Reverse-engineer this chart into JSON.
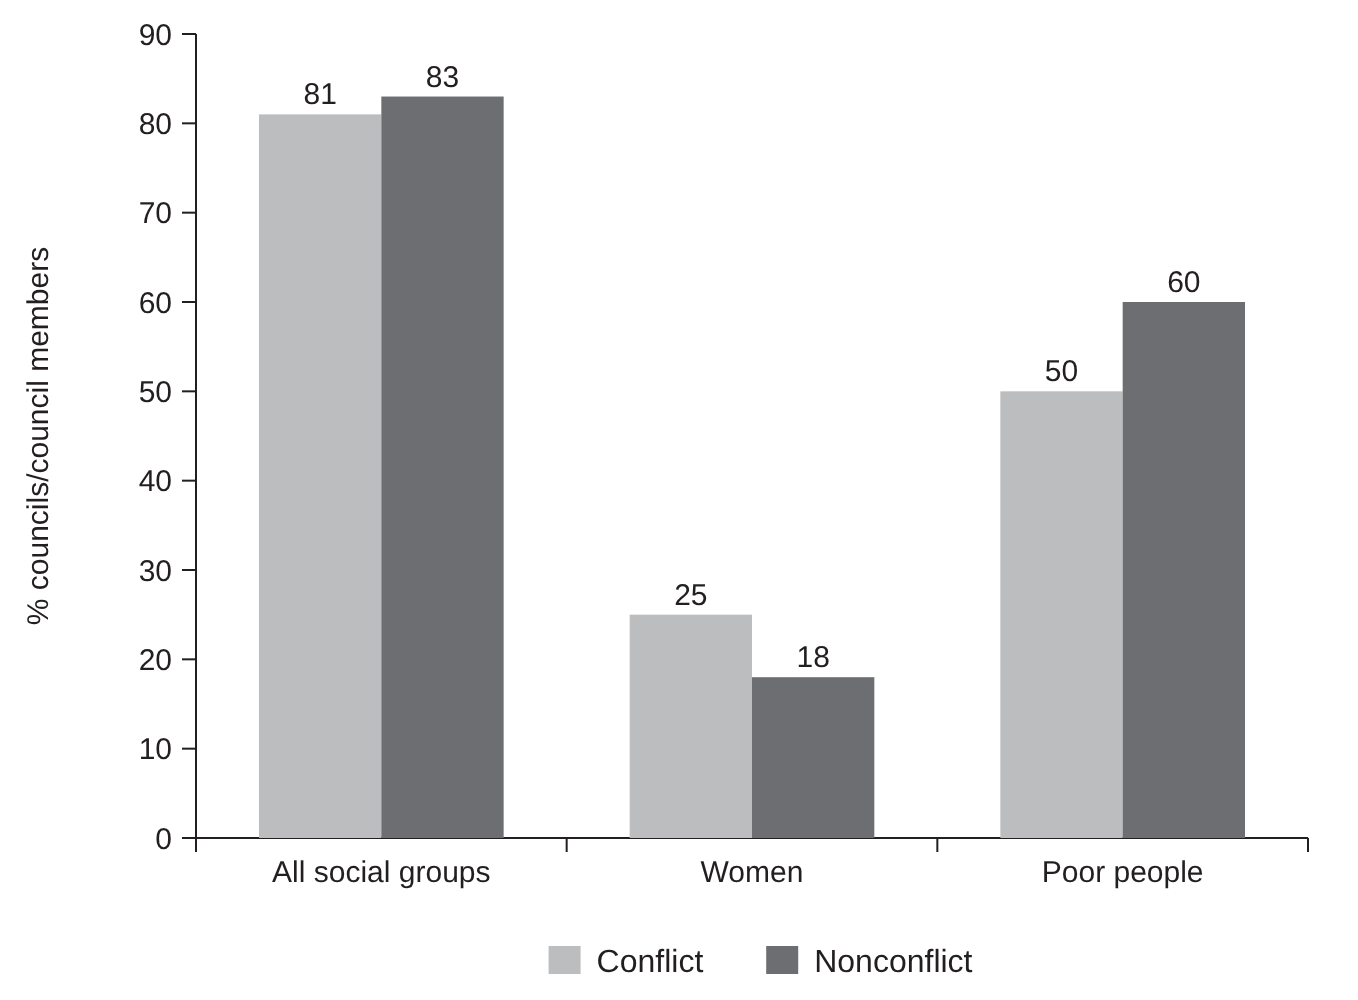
{
  "chart_data": {
    "type": "bar",
    "ylabel": "% councils/council members",
    "categories": [
      "All social groups",
      "Women",
      "Poor people"
    ],
    "series": [
      {
        "name": "Conflict",
        "color": "#bcbdbf",
        "values": [
          81,
          25,
          50
        ]
      },
      {
        "name": "Nonconflict",
        "color": "#6d6e71",
        "values": [
          83,
          18,
          60
        ]
      }
    ],
    "ylim": [
      0,
      90
    ],
    "yticks": [
      0,
      10,
      20,
      30,
      40,
      50,
      60,
      70,
      80,
      90
    ],
    "data_labels": true,
    "legend": "bottom",
    "grid": false
  }
}
